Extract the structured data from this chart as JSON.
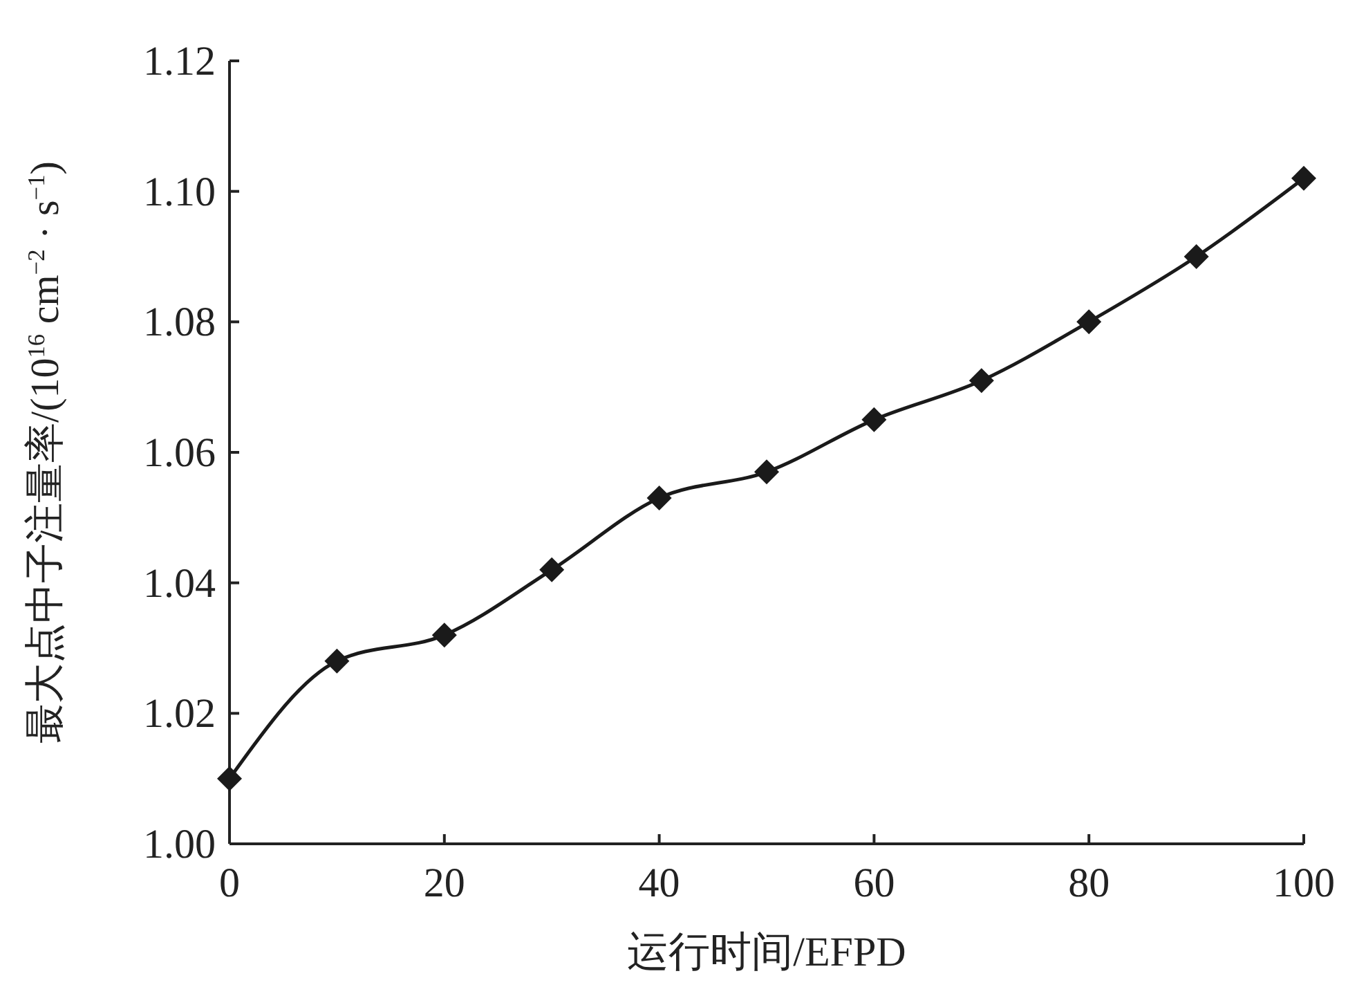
{
  "chart_data": {
    "type": "line",
    "xlabel": "运行时间/EFPD",
    "ylabel": "最大点中子注量率/(10$^{16}$ cm$^{−2}$ · s$^{−1}$)",
    "x": [
      0,
      10,
      20,
      30,
      40,
      50,
      60,
      70,
      80,
      90,
      100
    ],
    "series": [
      {
        "color": "#1a1a1a",
        "values": [
          1.01,
          1.028,
          1.032,
          1.042,
          1.053,
          1.057,
          1.065,
          1.071,
          1.08,
          1.09,
          1.102
        ]
      }
    ],
    "xlim": [
      0,
      100
    ],
    "xticks": [
      0,
      20,
      40,
      60,
      80,
      100
    ],
    "ylim": [
      1.0,
      1.12
    ],
    "yticks": [
      {
        "value": 1.0,
        "label": "1.00"
      },
      {
        "value": 1.02,
        "label": "1.02"
      },
      {
        "value": 1.04,
        "label": "1.04"
      },
      {
        "value": 1.06,
        "label": "1.06"
      },
      {
        "value": 1.08,
        "label": "1.08"
      },
      {
        "value": 1.1,
        "label": "1.10"
      },
      {
        "value": 1.12,
        "label": "1.12"
      }
    ],
    "grid": false,
    "marker": "diamond",
    "line_style": "solid"
  }
}
